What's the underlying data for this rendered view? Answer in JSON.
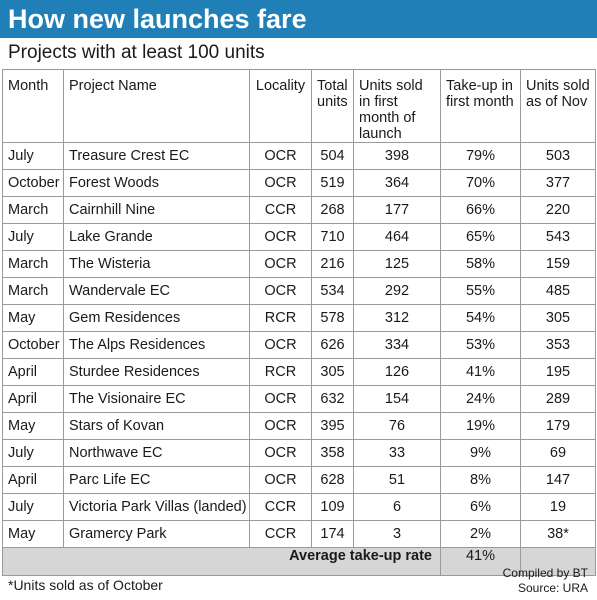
{
  "title": "How new launches fare",
  "subtitle": "Projects with at least 100 units",
  "table": {
    "headers": [
      "Month",
      "Project Name",
      "Locality",
      "Total units",
      "Units sold in first month of launch",
      "Take-up in first month",
      "Units sold as of Nov"
    ],
    "rows": [
      [
        "July",
        "Treasure Crest EC",
        "OCR",
        "504",
        "398",
        "79%",
        "503"
      ],
      [
        "October",
        "Forest Woods",
        "OCR",
        "519",
        "364",
        "70%",
        "377"
      ],
      [
        "March",
        "Cairnhill Nine",
        "CCR",
        "268",
        "177",
        "66%",
        "220"
      ],
      [
        "July",
        "Lake Grande",
        "OCR",
        "710",
        "464",
        "65%",
        "543"
      ],
      [
        "March",
        "The Wisteria",
        "OCR",
        "216",
        "125",
        "58%",
        "159"
      ],
      [
        "March",
        "Wandervale EC",
        "OCR",
        "534",
        "292",
        "55%",
        "485"
      ],
      [
        "May",
        "Gem Residences",
        "RCR",
        "578",
        "312",
        "54%",
        "305"
      ],
      [
        "October",
        "The Alps Residences",
        "OCR",
        "626",
        "334",
        "53%",
        "353"
      ],
      [
        "April",
        "Sturdee Residences",
        "RCR",
        "305",
        "126",
        "41%",
        "195"
      ],
      [
        "April",
        "The Visionaire EC",
        "OCR",
        "632",
        "154",
        "24%",
        "289"
      ],
      [
        "May",
        "Stars of Kovan",
        "OCR",
        "395",
        "76",
        "19%",
        "179"
      ],
      [
        "July",
        "Northwave EC",
        "OCR",
        "358",
        "33",
        "9%",
        "69"
      ],
      [
        "April",
        "Parc Life EC",
        "OCR",
        "628",
        "51",
        "8%",
        "147"
      ],
      [
        "July",
        "Victoria Park Villas (landed)",
        "CCR",
        "109",
        "6",
        "6%",
        "19"
      ],
      [
        "May",
        "Gramercy Park",
        "CCR",
        "174",
        "3",
        "2%",
        "38*"
      ]
    ],
    "average_label": "Average take-up rate",
    "average_value": "41%"
  },
  "footnote": "*Units sold as of October",
  "credits": {
    "compiled": "Compiled by BT",
    "source": "Source: URA"
  },
  "colors": {
    "title_bar": "#1f7fb6",
    "average_row": "#d6d6d6",
    "border": "#9a9a9a"
  }
}
